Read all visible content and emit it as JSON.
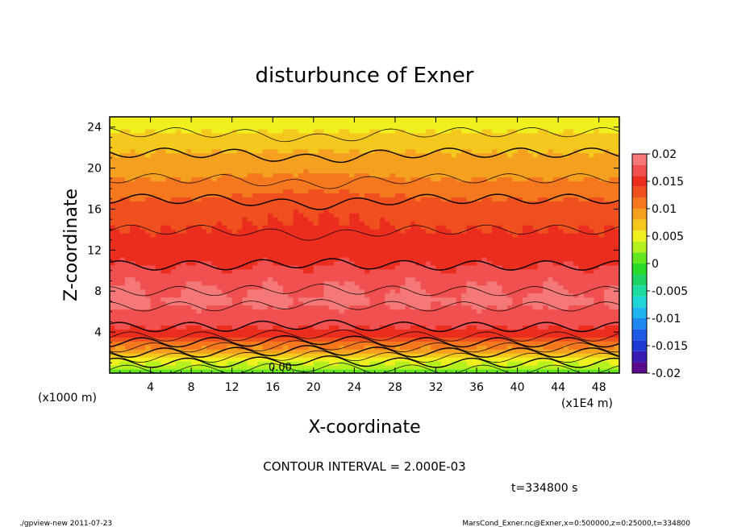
{
  "chart_data": {
    "type": "heatmap",
    "title": "disturbunce of Exner",
    "xlabel": "X-coordinate",
    "ylabel": "Z-coordinate",
    "x_unit_label": "(x1E4 m)",
    "y_unit_label": "(x1000 m)",
    "xlim": [
      0,
      50
    ],
    "ylim": [
      0,
      25
    ],
    "x_ticks": [
      4,
      8,
      12,
      16,
      20,
      24,
      28,
      32,
      36,
      40,
      44,
      48
    ],
    "y_ticks": [
      4,
      8,
      12,
      16,
      20,
      24
    ],
    "x_tick_labels": [
      "4",
      "8",
      "12",
      "16",
      "20",
      "24",
      "28",
      "32",
      "36",
      "40",
      "44",
      "48"
    ],
    "y_tick_labels": [
      "4",
      "8",
      "12",
      "16",
      "20",
      "24"
    ],
    "contour_label": "0.00",
    "contour_interval_text": "CONTOUR INTERVAL = 2.000E-03",
    "time_text": "t=334800 s",
    "colorbar": {
      "range": [
        -0.02,
        0.02
      ],
      "tick_values": [
        0.02,
        0.015,
        0.01,
        0.005,
        0,
        -0.005,
        -0.01,
        -0.015,
        -0.02
      ],
      "tick_labels": [
        "0.02",
        "0.015",
        "0.01",
        "0.005",
        "0",
        "-0.005",
        "-0.01",
        "-0.015",
        "-0.02"
      ],
      "levels": [
        {
          "from": -0.02,
          "to": -0.018,
          "color": "#5a0a8c"
        },
        {
          "from": -0.018,
          "to": -0.016,
          "color": "#3a1cb4"
        },
        {
          "from": -0.016,
          "to": -0.014,
          "color": "#1f3ad2"
        },
        {
          "from": -0.014,
          "to": -0.012,
          "color": "#1e5ae6"
        },
        {
          "from": -0.012,
          "to": -0.01,
          "color": "#1f88f0"
        },
        {
          "from": -0.01,
          "to": -0.008,
          "color": "#1fb4f0"
        },
        {
          "from": -0.008,
          "to": -0.006,
          "color": "#1fd6d6"
        },
        {
          "from": -0.006,
          "to": -0.004,
          "color": "#1edca0"
        },
        {
          "from": -0.004,
          "to": -0.002,
          "color": "#1ed264"
        },
        {
          "from": -0.002,
          "to": 0,
          "color": "#2adc2a"
        },
        {
          "from": 0,
          "to": 0.002,
          "color": "#64e61e"
        },
        {
          "from": 0.002,
          "to": 0.004,
          "color": "#b4f01e"
        },
        {
          "from": 0.004,
          "to": 0.006,
          "color": "#f0f01e"
        },
        {
          "from": 0.006,
          "to": 0.008,
          "color": "#f5c81e"
        },
        {
          "from": 0.008,
          "to": 0.01,
          "color": "#f5a01e"
        },
        {
          "from": 0.01,
          "to": 0.012,
          "color": "#f5781e"
        },
        {
          "from": 0.012,
          "to": 0.014,
          "color": "#f0501e"
        },
        {
          "from": 0.014,
          "to": 0.016,
          "color": "#eb2d1e"
        },
        {
          "from": 0.016,
          "to": 0.018,
          "color": "#f05050"
        },
        {
          "from": 0.018,
          "to": 0.02,
          "color": "#f57878"
        }
      ]
    },
    "vertical_profile_z_km": [
      0,
      1,
      2,
      3,
      4,
      5,
      6,
      7,
      8,
      9,
      10,
      11,
      12,
      13,
      14,
      15,
      16,
      17,
      18,
      19,
      20,
      21,
      22,
      23,
      24,
      25
    ],
    "vertical_profile_value": [
      0.001,
      0.004,
      0.008,
      0.012,
      0.0155,
      0.0165,
      0.0175,
      0.0185,
      0.018,
      0.0175,
      0.0165,
      0.0155,
      0.015,
      0.0145,
      0.014,
      0.0135,
      0.013,
      0.012,
      0.011,
      0.01,
      0.009,
      0.0085,
      0.0075,
      0.0065,
      0.0055,
      0.0045
    ]
  },
  "footer": {
    "left": "./gpview-new   2011-07-23",
    "right": "MarsCond_Exner.nc@Exner,x=0:500000,z=0:25000,t=334800"
  }
}
